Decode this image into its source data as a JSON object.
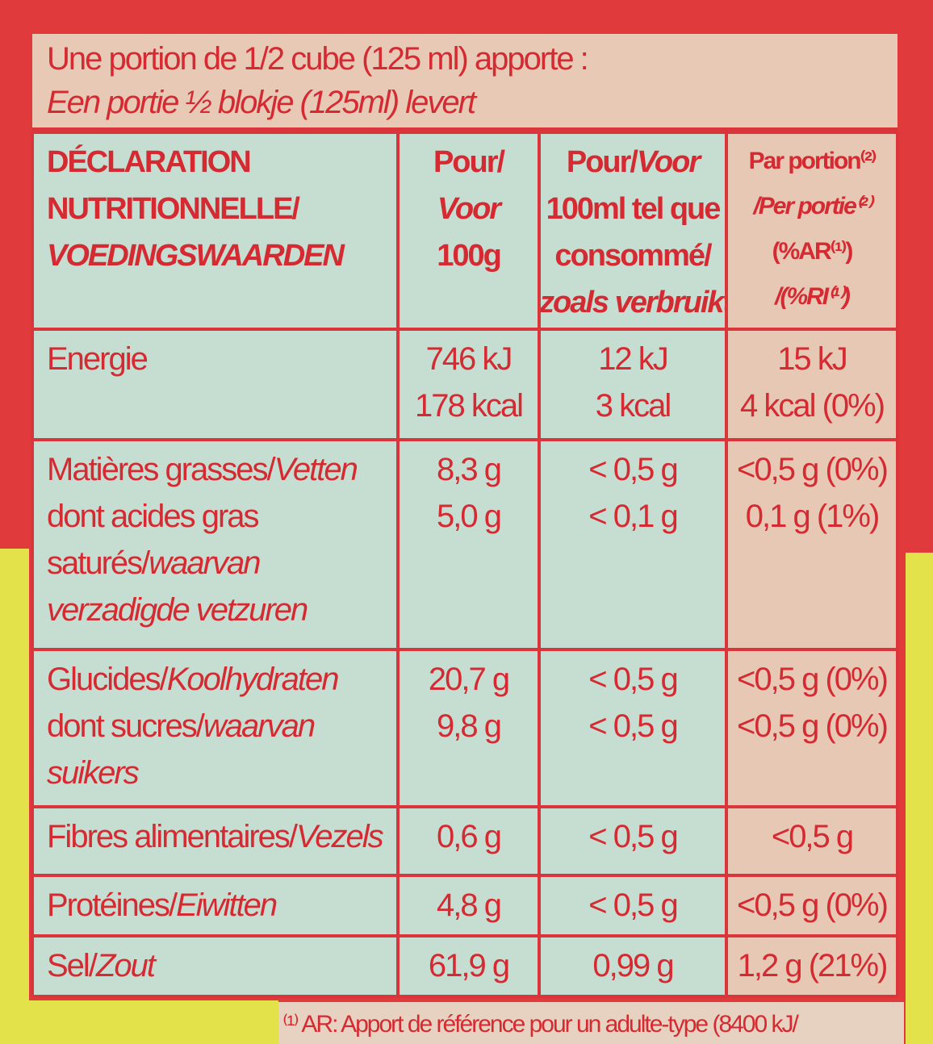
{
  "intro": [
    {
      "r": "Une portion de 1/2 cube (125 ml) apporte :"
    },
    {
      "i": "Een portie ½ blokje (125ml) levert"
    }
  ],
  "table": {
    "header": [
      [
        {
          "r": "DÉCLARATION"
        },
        {
          "r": "NUTRITIONNELLE/"
        },
        {
          "i": "VOEDINGSWAARDEN"
        }
      ],
      [
        {
          "r": "Pour/"
        },
        {
          "i": "Voor"
        },
        {
          "r": "100g"
        }
      ],
      [
        {
          "r": "Pour/",
          "i": "Voor"
        },
        {
          "r": "100ml tel que"
        },
        {
          "r": "consommé/"
        },
        {
          "i": "zoals verbruikt"
        }
      ],
      [
        {
          "r": "Par portion⁽²⁾"
        },
        {
          "i": "/Per portie⁽²⁾"
        },
        {
          "r": "(%AR⁽¹⁾)"
        },
        {
          "i": "/(%RI⁽¹⁾)"
        }
      ]
    ],
    "rows": [
      {
        "label": [
          {
            "r": "Energie"
          }
        ],
        "values": [
          [
            "746 kJ",
            "178 kcal"
          ],
          [
            "12 kJ",
            "3 kcal"
          ],
          [
            "15 kJ",
            "4 kcal (0%)"
          ]
        ]
      },
      {
        "label": [
          {
            "r": "Matières grasses/",
            "i": "Vetten"
          },
          {
            "r": "dont acides gras"
          },
          {
            "r": "saturés/",
            "i": "waarvan"
          },
          {
            "i": "verzadigde vetzuren"
          }
        ],
        "values": [
          [
            "8,3 g",
            "5,0 g"
          ],
          [
            "< 0,5 g",
            "< 0,1 g"
          ],
          [
            "<0,5 g (0%)",
            "0,1 g (1%)"
          ]
        ]
      },
      {
        "label": [
          {
            "r": "Glucides/",
            "i": "Koolhydraten"
          },
          {
            "r": "dont sucres/",
            "i": "waarvan"
          },
          {
            "i": "suikers"
          }
        ],
        "values": [
          [
            "20,7 g",
            "9,8 g"
          ],
          [
            "< 0,5 g",
            "< 0,5 g"
          ],
          [
            "<0,5 g (0%)",
            "<0,5 g (0%)"
          ]
        ]
      },
      {
        "label": [
          {
            "r": "Fibres alimentaires/",
            "i": "Vezels"
          }
        ],
        "values": [
          [
            "0,6 g"
          ],
          [
            "< 0,5 g"
          ],
          [
            "<0,5 g"
          ]
        ]
      },
      {
        "label": [
          {
            "r": "Protéines/",
            "i": "Eiwitten"
          }
        ],
        "values": [
          [
            "4,8 g"
          ],
          [
            "< 0,5 g"
          ],
          [
            "<0,5 g (0%)"
          ]
        ]
      },
      {
        "label": [
          {
            "r": "Sel/",
            "i": "Zout"
          }
        ],
        "values": [
          [
            "61,9 g"
          ],
          [
            "0,99 g"
          ],
          [
            "1,2 g (21%)"
          ]
        ]
      }
    ]
  },
  "footnote": "⁽¹⁾ AR: Apport de référence pour un adulte-type (8400 kJ/"
}
